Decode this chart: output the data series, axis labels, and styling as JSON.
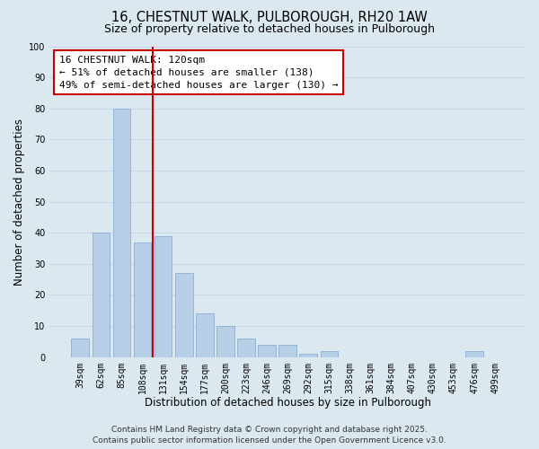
{
  "title": "16, CHESTNUT WALK, PULBOROUGH, RH20 1AW",
  "subtitle": "Size of property relative to detached houses in Pulborough",
  "xlabel": "Distribution of detached houses by size in Pulborough",
  "ylabel": "Number of detached properties",
  "categories": [
    "39sqm",
    "62sqm",
    "85sqm",
    "108sqm",
    "131sqm",
    "154sqm",
    "177sqm",
    "200sqm",
    "223sqm",
    "246sqm",
    "269sqm",
    "292sqm",
    "315sqm",
    "338sqm",
    "361sqm",
    "384sqm",
    "407sqm",
    "430sqm",
    "453sqm",
    "476sqm",
    "499sqm"
  ],
  "values": [
    6,
    40,
    80,
    37,
    39,
    27,
    14,
    10,
    6,
    4,
    4,
    1,
    2,
    0,
    0,
    0,
    0,
    0,
    0,
    2,
    0
  ],
  "bar_color": "#b8cfe8",
  "bar_edge_color": "#8aaed4",
  "vline_x": 3.5,
  "vline_color": "#cc0000",
  "annotation_line1": "16 CHESTNUT WALK: 120sqm",
  "annotation_line2": "← 51% of detached houses are smaller (138)",
  "annotation_line3": "49% of semi-detached houses are larger (130) →",
  "annotation_box_color": "#ffffff",
  "annotation_box_edge": "#cc0000",
  "ylim": [
    0,
    100
  ],
  "yticks": [
    0,
    10,
    20,
    30,
    40,
    50,
    60,
    70,
    80,
    90,
    100
  ],
  "grid_color": "#c8d8e8",
  "background_color": "#dce8f0",
  "footer_line1": "Contains HM Land Registry data © Crown copyright and database right 2025.",
  "footer_line2": "Contains public sector information licensed under the Open Government Licence v3.0.",
  "title_fontsize": 10.5,
  "subtitle_fontsize": 9,
  "xlabel_fontsize": 8.5,
  "ylabel_fontsize": 8.5,
  "tick_fontsize": 7,
  "annotation_fontsize": 8,
  "footer_fontsize": 6.5
}
